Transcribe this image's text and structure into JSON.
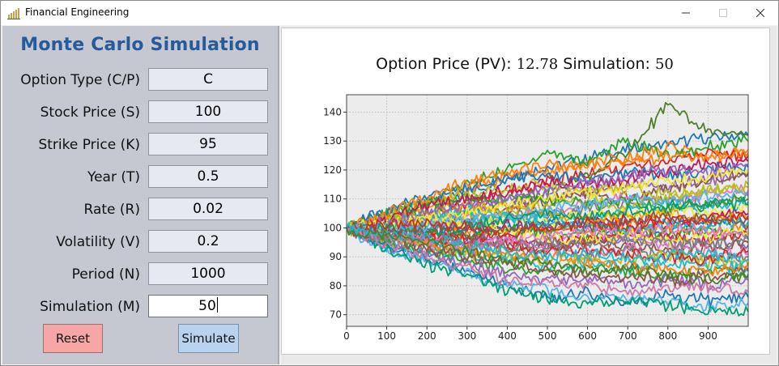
{
  "window": {
    "title": "Financial Engineering",
    "app_icon": "bar-chart-icon",
    "controls": {
      "minimize": "minimize-icon",
      "maximize": "maximize-icon",
      "close": "close-icon"
    }
  },
  "panel": {
    "title": "Monte Carlo Simulation",
    "fields": [
      {
        "label": "Option Type (C/P)",
        "value": "C"
      },
      {
        "label": "Stock Price (S)",
        "value": "100"
      },
      {
        "label": "Strike Price (K)",
        "value": "95"
      },
      {
        "label": "Year (T)",
        "value": "0.5"
      },
      {
        "label": "Rate (R)",
        "value": "0.02"
      },
      {
        "label": "Volatility (V)",
        "value": "0.2"
      },
      {
        "label": "Period (N)",
        "value": "1000"
      },
      {
        "label": "Simulation (M)",
        "value": "50"
      }
    ],
    "reset_label": "Reset",
    "simulate_label": "Simulate",
    "colors": {
      "title": "#265a9a",
      "reset": "#f7a6a6",
      "simulate": "#b9d3ee"
    }
  },
  "chart": {
    "title_prefix": "Option Price (PV): ",
    "price": "12.78",
    "title_mid": "  Simulation: ",
    "simulations": "50"
  },
  "chart_data": {
    "type": "line",
    "title": "Option Price (PV): 12.78  Simulation: 50",
    "xlabel": "",
    "ylabel": "",
    "xlim": [
      0,
      1000
    ],
    "ylim": [
      66,
      146
    ],
    "xticks": [
      0,
      100,
      200,
      300,
      400,
      500,
      600,
      700,
      800,
      900
    ],
    "yticks": [
      70,
      80,
      90,
      100,
      110,
      120,
      130,
      140
    ],
    "grid": true,
    "legend": "none",
    "x": [
      0,
      100,
      200,
      300,
      400,
      500,
      600,
      700,
      800,
      900,
      1000
    ],
    "series": [
      {
        "values": [
          100,
          104,
          108,
          112,
          117,
          121,
          124,
          127,
          129,
          131,
          132
        ],
        "color": "#1f77b4"
      },
      {
        "values": [
          100,
          102,
          107,
          113,
          118,
          119,
          122,
          124,
          128,
          125,
          127
        ],
        "color": "#ff7f0e"
      },
      {
        "values": [
          100,
          105,
          109,
          115,
          120,
          126,
          123,
          130,
          125,
          128,
          130
        ],
        "color": "#2ca02c"
      },
      {
        "values": [
          100,
          101,
          104,
          108,
          112,
          116,
          119,
          121,
          123,
          126,
          125
        ],
        "color": "#d62728"
      },
      {
        "values": [
          100,
          103,
          106,
          110,
          107,
          113,
          118,
          127,
          142,
          133,
          132
        ],
        "color": "#4f7f2a"
      },
      {
        "values": [
          100,
          100,
          103,
          106,
          108,
          111,
          113,
          115,
          114,
          117,
          118
        ],
        "color": "#9467bd"
      },
      {
        "values": [
          100,
          102,
          101,
          104,
          107,
          109,
          112,
          110,
          114,
          116,
          119
        ],
        "color": "#8c564b"
      },
      {
        "values": [
          100,
          99,
          102,
          105,
          103,
          106,
          108,
          111,
          109,
          112,
          113
        ],
        "color": "#e377c2"
      },
      {
        "values": [
          100,
          101,
          100,
          102,
          105,
          104,
          107,
          109,
          110,
          108,
          111
        ],
        "color": "#7f7f7f"
      },
      {
        "values": [
          100,
          103,
          105,
          104,
          106,
          108,
          110,
          107,
          111,
          113,
          114
        ],
        "color": "#bcbd22"
      },
      {
        "values": [
          100,
          98,
          101,
          103,
          102,
          104,
          103,
          106,
          108,
          107,
          109
        ],
        "color": "#17becf"
      },
      {
        "values": [
          100,
          102,
          104,
          101,
          103,
          102,
          105,
          104,
          106,
          105,
          107
        ],
        "color": "#f2e633"
      },
      {
        "values": [
          100,
          99,
          98,
          100,
          101,
          99,
          102,
          103,
          101,
          104,
          105
        ],
        "color": "#c2185b"
      },
      {
        "values": [
          100,
          101,
          99,
          98,
          100,
          102,
          101,
          99,
          100,
          102,
          103
        ],
        "color": "#1f77b4"
      },
      {
        "values": [
          100,
          98,
          97,
          99,
          98,
          100,
          99,
          101,
          100,
          98,
          100
        ],
        "color": "#ff7f0e"
      },
      {
        "values": [
          100,
          99,
          100,
          97,
          99,
          98,
          97,
          99,
          98,
          99,
          97
        ],
        "color": "#2ca02c"
      },
      {
        "values": [
          100,
          97,
          98,
          96,
          97,
          95,
          96,
          98,
          97,
          96,
          98
        ],
        "color": "#d62728"
      },
      {
        "values": [
          100,
          98,
          96,
          95,
          96,
          94,
          95,
          97,
          96,
          95,
          94
        ],
        "color": "#9467bd"
      },
      {
        "values": [
          100,
          96,
          95,
          97,
          94,
          93,
          95,
          94,
          92,
          93,
          95
        ],
        "color": "#8c564b"
      },
      {
        "values": [
          100,
          97,
          94,
          93,
          95,
          92,
          91,
          93,
          94,
          92,
          91
        ],
        "color": "#e377c2"
      },
      {
        "values": [
          100,
          95,
          93,
          92,
          91,
          93,
          90,
          92,
          91,
          89,
          90
        ],
        "color": "#7f7f7f"
      },
      {
        "values": [
          100,
          96,
          94,
          91,
          90,
          88,
          90,
          89,
          91,
          88,
          87
        ],
        "color": "#bcbd22"
      },
      {
        "values": [
          100,
          94,
          92,
          90,
          89,
          87,
          88,
          86,
          88,
          87,
          86
        ],
        "color": "#17becf"
      },
      {
        "values": [
          100,
          95,
          91,
          88,
          86,
          84,
          86,
          85,
          83,
          85,
          84
        ],
        "color": "#2ca02c"
      },
      {
        "values": [
          100,
          93,
          90,
          87,
          84,
          82,
          83,
          81,
          82,
          80,
          82
        ],
        "color": "#9467bd"
      },
      {
        "values": [
          100,
          94,
          89,
          85,
          80,
          76,
          78,
          74,
          77,
          75,
          76
        ],
        "color": "#1f77b4"
      },
      {
        "values": [
          100,
          92,
          88,
          84,
          80,
          79,
          75,
          76,
          74,
          73,
          74
        ],
        "color": "#56b4e9"
      },
      {
        "values": [
          100,
          93,
          87,
          84,
          78,
          76,
          74,
          75,
          73,
          72,
          71
        ],
        "color": "#009e73"
      },
      {
        "values": [
          100,
          95,
          90,
          86,
          82,
          81,
          80,
          78,
          79,
          80,
          78
        ],
        "color": "#cc79a7"
      },
      {
        "values": [
          100,
          97,
          93,
          90,
          88,
          86,
          84,
          83,
          82,
          83,
          85
        ],
        "color": "#8c564b"
      },
      {
        "values": [
          100,
          98,
          95,
          93,
          91,
          90,
          88,
          87,
          86,
          85,
          88
        ],
        "color": "#ff7f0e"
      },
      {
        "values": [
          100,
          99,
          97,
          95,
          94,
          92,
          93,
          91,
          90,
          89,
          92
        ],
        "color": "#d62728"
      },
      {
        "values": [
          100,
          102,
          103,
          101,
          99,
          97,
          96,
          98,
          96,
          97,
          99
        ],
        "color": "#f2e633"
      },
      {
        "values": [
          100,
          103,
          104,
          106,
          104,
          102,
          100,
          99,
          101,
          100,
          102
        ],
        "color": "#17becf"
      },
      {
        "values": [
          100,
          104,
          106,
          108,
          107,
          105,
          103,
          104,
          105,
          103,
          104
        ],
        "color": "#e69f00"
      },
      {
        "values": [
          100,
          105,
          108,
          110,
          111,
          110,
          108,
          109,
          107,
          108,
          110
        ],
        "color": "#2ca02c"
      },
      {
        "values": [
          100,
          104,
          109,
          112,
          114,
          115,
          113,
          114,
          112,
          113,
          115
        ],
        "color": "#bcbd22"
      },
      {
        "values": [
          100,
          106,
          111,
          114,
          117,
          118,
          117,
          119,
          118,
          120,
          121
        ],
        "color": "#1f77b4"
      },
      {
        "values": [
          100,
          103,
          108,
          110,
          113,
          116,
          115,
          117,
          119,
          122,
          123
        ],
        "color": "#c2185b"
      },
      {
        "values": [
          100,
          105,
          110,
          116,
          119,
          122,
          121,
          123,
          125,
          124,
          126
        ],
        "color": "#ff7f0e"
      },
      {
        "values": [
          100,
          102,
          105,
          108,
          110,
          113,
          116,
          118,
          120,
          119,
          122
        ],
        "color": "#9467bd"
      },
      {
        "values": [
          100,
          101,
          103,
          105,
          108,
          110,
          112,
          114,
          116,
          118,
          120
        ],
        "color": "#f2e633"
      },
      {
        "values": [
          100,
          99,
          101,
          102,
          104,
          106,
          108,
          110,
          109,
          111,
          112
        ],
        "color": "#56b4e9"
      },
      {
        "values": [
          100,
          100,
          98,
          100,
          103,
          105,
          104,
          106,
          107,
          109,
          108
        ],
        "color": "#009e73"
      },
      {
        "values": [
          100,
          101,
          102,
          100,
          98,
          100,
          102,
          101,
          103,
          102,
          104
        ],
        "color": "#d62728"
      },
      {
        "values": [
          100,
          98,
          99,
          101,
          99,
          101,
          100,
          102,
          104,
          103,
          101
        ],
        "color": "#8c564b"
      },
      {
        "values": [
          100,
          97,
          96,
          94,
          96,
          97,
          99,
          98,
          100,
          99,
          97
        ],
        "color": "#e377c2"
      },
      {
        "values": [
          100,
          96,
          97,
          95,
          93,
          95,
          94,
          96,
          95,
          94,
          96
        ],
        "color": "#7f7f7f"
      },
      {
        "values": [
          100,
          98,
          96,
          94,
          92,
          90,
          91,
          89,
          90,
          91,
          89
        ],
        "color": "#17becf"
      },
      {
        "values": [
          100,
          97,
          95,
          92,
          89,
          87,
          85,
          86,
          84,
          82,
          83
        ],
        "color": "#4f7f2a"
      }
    ]
  }
}
